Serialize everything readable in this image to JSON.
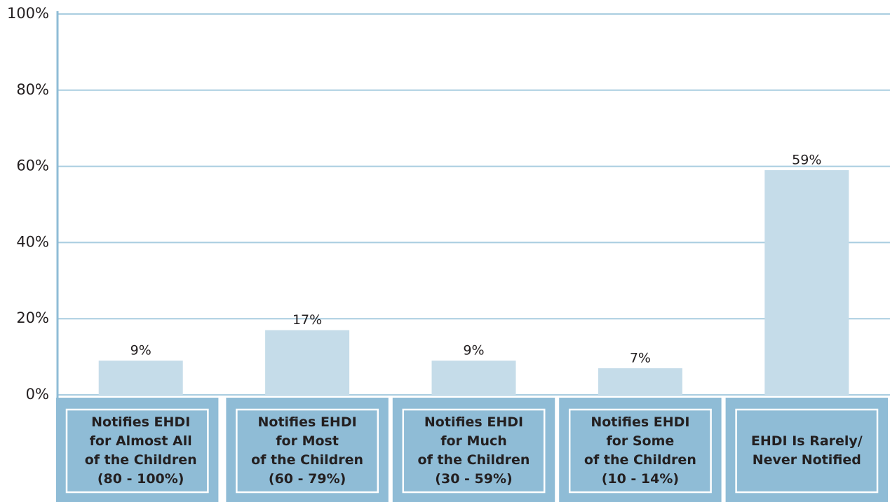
{
  "chart_data": {
    "type": "bar",
    "categories": [
      [
        "Notifies EHDI",
        "for Almost All",
        "of the Children",
        "(80 - 100%)"
      ],
      [
        "Notifies EHDI",
        "for Most",
        "of the Children",
        "(60 - 79%)"
      ],
      [
        "Notifies EHDI",
        "for Much",
        "of the Children",
        "(30 - 59%)"
      ],
      [
        "Notifies EHDI",
        "for Some",
        "of the Children",
        "(10 - 14%)"
      ],
      [
        "EHDI Is Rarely/",
        "Never Notified"
      ]
    ],
    "values": [
      9,
      17,
      9,
      7,
      59
    ],
    "value_labels": [
      "9%",
      "17%",
      "9%",
      "7%",
      "59%"
    ],
    "color": "#c5dce9",
    "ylim": [
      0,
      100
    ],
    "yticks": [
      {
        "value": 0,
        "label": "0%"
      },
      {
        "value": 20,
        "label": "20%"
      },
      {
        "value": 40,
        "label": "40%"
      },
      {
        "value": 60,
        "label": "60%"
      },
      {
        "value": 80,
        "label": "80%"
      },
      {
        "value": 100,
        "label": "100%"
      }
    ],
    "grid": true
  }
}
